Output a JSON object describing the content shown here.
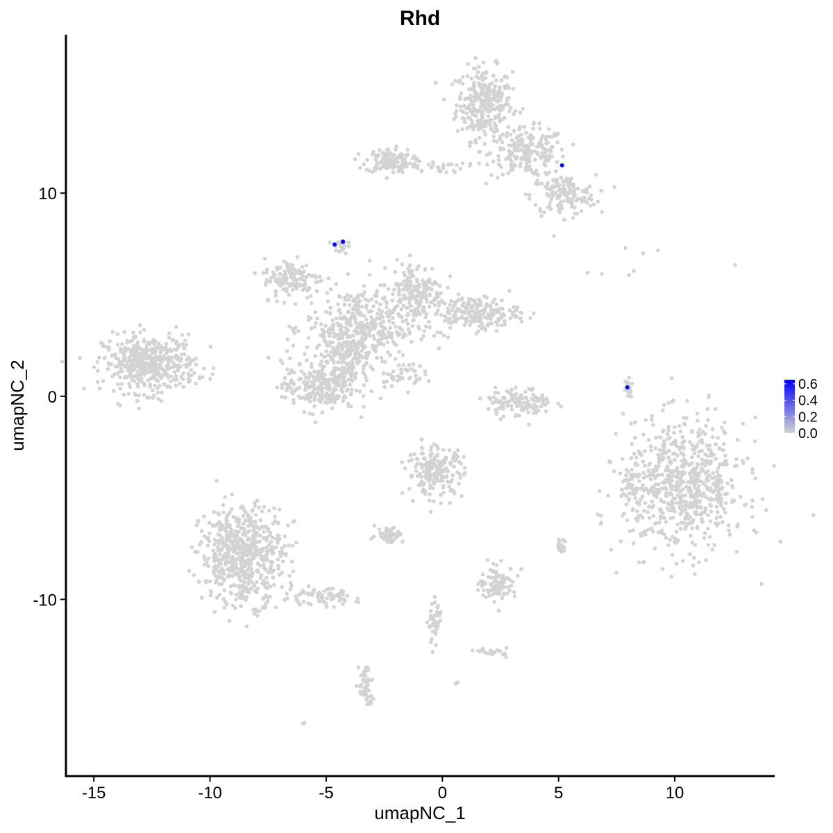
{
  "chart_data": {
    "type": "scatter",
    "title": "Rhd",
    "xlabel": "umapNC_1",
    "ylabel": "umapNC_2",
    "xlim": [
      -16.2,
      14.3
    ],
    "ylim": [
      -18.7,
      17.8
    ],
    "xticks": [
      -15,
      -10,
      -5,
      0,
      5,
      10
    ],
    "yticks": [
      -10,
      0,
      10
    ],
    "grid": false,
    "background_color": "#d3d3d3",
    "colorscale": {
      "low": "#d3d3d3",
      "high": "#0000ff",
      "min": 0.0,
      "max": 0.65,
      "ticks": [
        "0.0",
        "0.2",
        "0.4",
        "0.6"
      ]
    },
    "legend_position": "right",
    "background_clusters": [
      {
        "cx": 1.8,
        "cy": 14.4,
        "sx": 0.6,
        "sy": 0.9,
        "n": 300
      },
      {
        "cx": 3.7,
        "cy": 12.0,
        "sx": 0.8,
        "sy": 0.6,
        "n": 200
      },
      {
        "cx": 5.2,
        "cy": 9.9,
        "sx": 0.7,
        "sy": 0.5,
        "n": 150
      },
      {
        "cx": -2.3,
        "cy": 11.6,
        "sx": 0.5,
        "sy": 0.3,
        "n": 120
      },
      {
        "cx": -0.8,
        "cy": 11.3,
        "sx": 0.9,
        "sy": 0.15,
        "n": 40
      },
      {
        "cx": -12.6,
        "cy": 1.6,
        "sx": 1.0,
        "sy": 0.7,
        "n": 450
      },
      {
        "cx": -3.5,
        "cy": 3.4,
        "sx": 1.2,
        "sy": 1.0,
        "n": 400
      },
      {
        "cx": -6.5,
        "cy": 5.8,
        "sx": 0.6,
        "sy": 0.5,
        "n": 120
      },
      {
        "cx": -1.1,
        "cy": 5.2,
        "sx": 0.6,
        "sy": 0.7,
        "n": 150
      },
      {
        "cx": 1.3,
        "cy": 4.1,
        "sx": 1.0,
        "sy": 0.4,
        "n": 200
      },
      {
        "cx": -5.3,
        "cy": 0.5,
        "sx": 0.8,
        "sy": 0.6,
        "n": 250
      },
      {
        "cx": -4.1,
        "cy": 2.1,
        "sx": 0.5,
        "sy": 0.8,
        "n": 150
      },
      {
        "cx": -1.8,
        "cy": 1.1,
        "sx": 0.5,
        "sy": 0.3,
        "n": 40
      },
      {
        "cx": -4.4,
        "cy": 7.4,
        "sx": 0.15,
        "sy": 0.2,
        "n": 20
      },
      {
        "cx": 3.3,
        "cy": -0.3,
        "sx": 0.7,
        "sy": 0.35,
        "n": 120
      },
      {
        "cx": 10.4,
        "cy": -4.4,
        "sx": 1.3,
        "sy": 1.6,
        "n": 700
      },
      {
        "cx": 8.1,
        "cy": -4.4,
        "sx": 0.2,
        "sy": 0.5,
        "n": 40
      },
      {
        "cx": 8.0,
        "cy": 0.4,
        "sx": 0.1,
        "sy": 0.4,
        "n": 20
      },
      {
        "cx": -8.6,
        "cy": -7.8,
        "sx": 0.9,
        "sy": 1.2,
        "n": 600
      },
      {
        "cx": -5.3,
        "cy": -9.9,
        "sx": 0.8,
        "sy": 0.2,
        "n": 80
      },
      {
        "cx": -0.3,
        "cy": -3.7,
        "sx": 0.6,
        "sy": 0.6,
        "n": 200
      },
      {
        "cx": -2.3,
        "cy": -6.8,
        "sx": 0.3,
        "sy": 0.2,
        "n": 50
      },
      {
        "cx": 2.4,
        "cy": -9.2,
        "sx": 0.4,
        "sy": 0.4,
        "n": 100
      },
      {
        "cx": -3.3,
        "cy": -14.3,
        "sx": 0.15,
        "sy": 0.6,
        "n": 50
      },
      {
        "cx": -0.3,
        "cy": -11.2,
        "sx": 0.15,
        "sy": 0.5,
        "n": 40
      },
      {
        "cx": 2.2,
        "cy": -12.6,
        "sx": 0.3,
        "sy": 0.1,
        "n": 20
      },
      {
        "cx": 5.1,
        "cy": -7.3,
        "sx": 0.1,
        "sy": 0.2,
        "n": 15
      },
      {
        "cx": 8.5,
        "cy": 6.5,
        "sx": 1.5,
        "sy": 0.5,
        "n": 8
      },
      {
        "cx": -6.0,
        "cy": -16.1,
        "sx": 0.05,
        "sy": 0.05,
        "n": 3
      },
      {
        "cx": 0.6,
        "cy": -14.1,
        "sx": 0.05,
        "sy": 0.05,
        "n": 3
      }
    ],
    "expressing_points": [
      {
        "x": 5.15,
        "y": 11.37,
        "value": 0.65
      },
      {
        "x": -4.64,
        "y": 7.47,
        "value": 0.65
      },
      {
        "x": -4.28,
        "y": 7.61,
        "value": 0.65
      },
      {
        "x": 7.96,
        "y": 0.44,
        "value": 0.65
      }
    ]
  }
}
